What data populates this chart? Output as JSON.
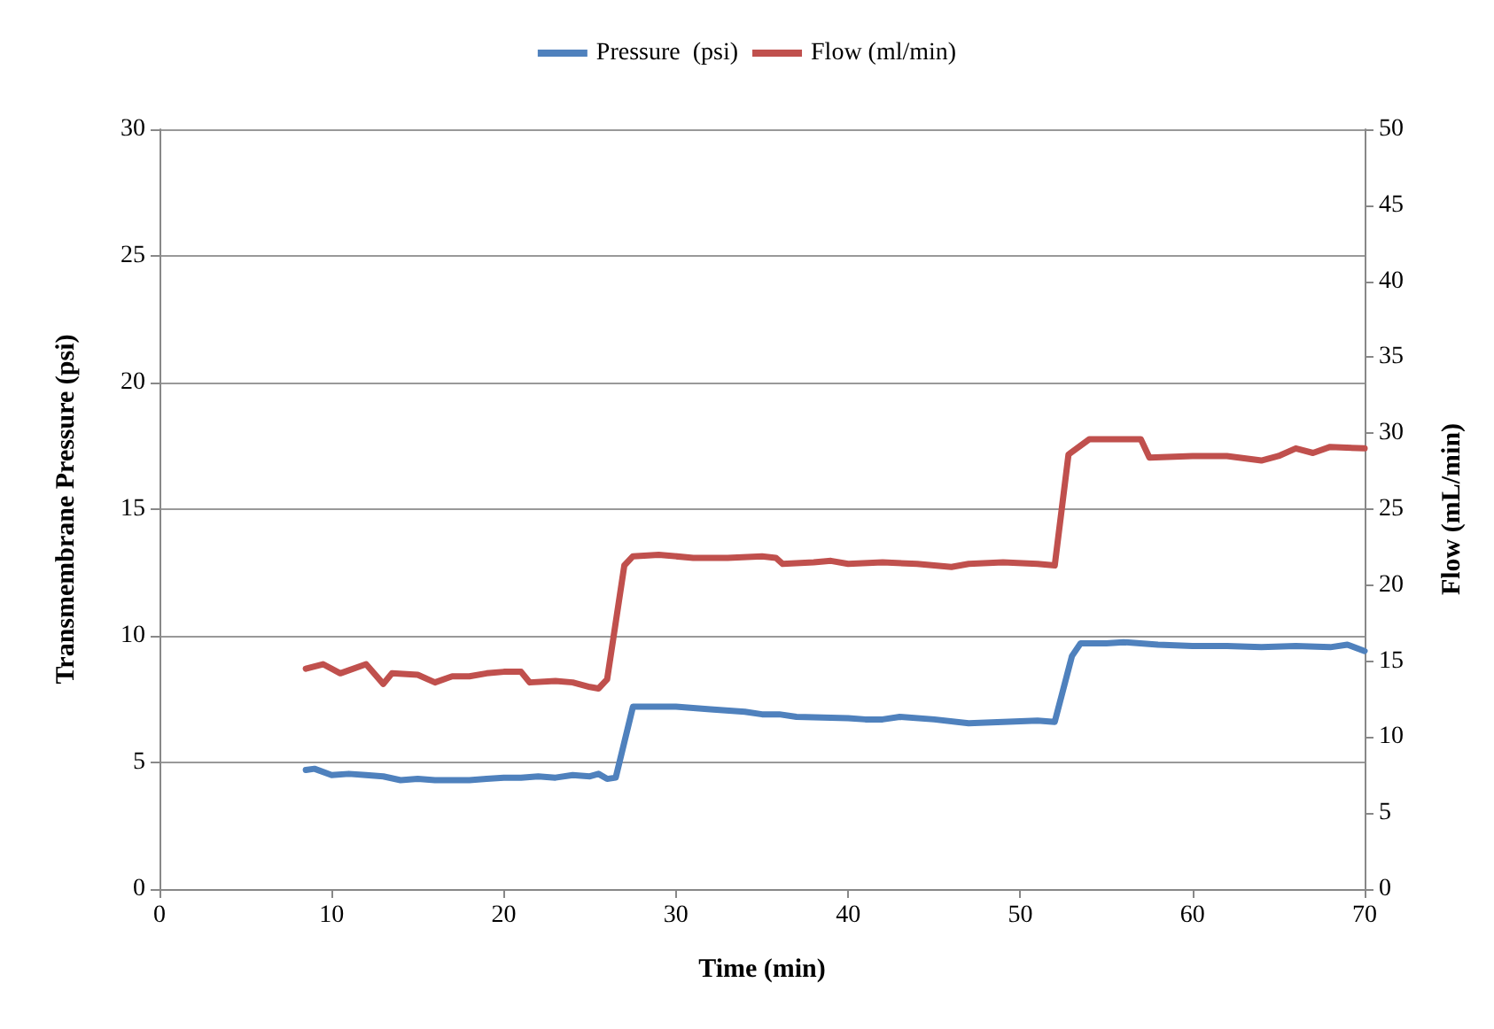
{
  "chart_data": {
    "type": "line",
    "xlabel": "Time (min)",
    "ylabel": "Transmembrane Pressure (psi)",
    "y2label": "Flow (mL/min)",
    "xlim": [
      0,
      70
    ],
    "xticks": [
      0,
      10,
      20,
      30,
      40,
      50,
      60,
      70
    ],
    "ylim": [
      0,
      30
    ],
    "yticks": [
      0,
      5,
      10,
      15,
      20,
      25,
      30
    ],
    "y2lim": [
      0,
      50
    ],
    "y2ticks": [
      0,
      5,
      10,
      15,
      20,
      25,
      30,
      35,
      40,
      45,
      50
    ],
    "grid": "y",
    "legend": "top",
    "marker": "none",
    "line_style": "solid",
    "series": [
      {
        "name": "Pressure  (psi)",
        "color": "#4f81bd",
        "x": [
          8.5,
          9,
          10,
          11,
          12,
          13,
          14,
          15,
          16,
          17,
          18,
          19,
          20,
          21,
          22,
          23,
          24,
          25,
          25.5,
          26,
          26.5,
          27.5,
          28,
          30,
          32,
          34,
          35,
          36,
          37,
          40,
          41,
          42,
          43,
          45,
          47,
          49,
          51,
          52,
          53,
          53.5,
          55,
          56,
          58,
          60,
          62,
          64,
          66,
          68,
          69,
          70
        ],
        "values": [
          4.7,
          4.75,
          4.5,
          4.55,
          4.5,
          4.45,
          4.3,
          4.35,
          4.3,
          4.3,
          4.3,
          4.35,
          4.4,
          4.4,
          4.45,
          4.4,
          4.5,
          4.45,
          4.55,
          4.35,
          4.4,
          7.2,
          7.2,
          7.2,
          7.1,
          7.0,
          6.9,
          6.9,
          6.8,
          6.75,
          6.7,
          6.7,
          6.8,
          6.7,
          6.55,
          6.6,
          6.65,
          6.6,
          9.2,
          9.7,
          9.7,
          9.75,
          9.65,
          9.6,
          9.6,
          9.55,
          9.6,
          9.55,
          9.65,
          9.4
        ]
      },
      {
        "name": "Flow (ml/min)",
        "color": "#c0504d",
        "axis": "y2",
        "x": [
          8.5,
          9.5,
          10.5,
          12,
          13,
          13.5,
          15,
          16,
          17,
          18,
          19,
          20,
          21,
          21.5,
          23,
          24,
          25,
          25.5,
          26,
          27,
          27.5,
          29,
          31,
          33,
          35,
          35.8,
          36.2,
          38,
          39,
          40,
          42,
          44,
          46,
          47,
          49,
          51,
          52,
          52.8,
          54,
          56,
          57,
          57.5,
          60,
          62,
          64,
          65,
          66,
          67,
          68,
          70
        ],
        "values": [
          14.5,
          14.8,
          14.2,
          14.8,
          13.5,
          14.2,
          14.1,
          13.6,
          14.0,
          14.0,
          14.2,
          14.3,
          14.3,
          13.6,
          13.7,
          13.6,
          13.3,
          13.2,
          13.8,
          21.3,
          21.9,
          22.0,
          21.8,
          21.8,
          21.9,
          21.8,
          21.4,
          21.5,
          21.6,
          21.4,
          21.5,
          21.4,
          21.2,
          21.4,
          21.5,
          21.4,
          21.3,
          28.6,
          29.6,
          29.6,
          29.6,
          28.4,
          28.5,
          28.5,
          28.2,
          28.5,
          29.0,
          28.7,
          29.1,
          29.0
        ]
      }
    ]
  }
}
